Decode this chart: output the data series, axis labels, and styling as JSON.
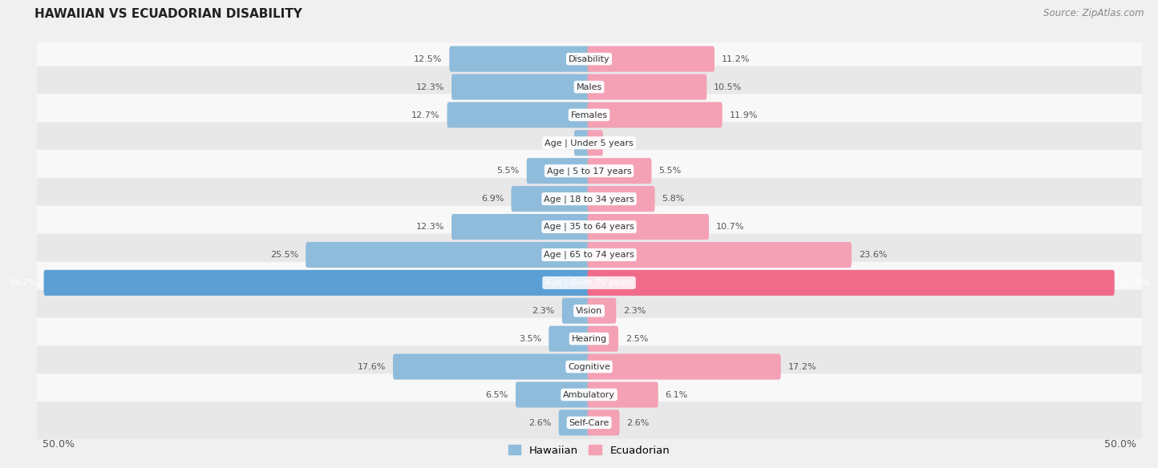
{
  "title": "HAWAIIAN VS ECUADORIAN DISABILITY",
  "source": "Source: ZipAtlas.com",
  "categories": [
    "Disability",
    "Males",
    "Females",
    "Age | Under 5 years",
    "Age | 5 to 17 years",
    "Age | 18 to 34 years",
    "Age | 35 to 64 years",
    "Age | 65 to 74 years",
    "Age | Over 75 years",
    "Vision",
    "Hearing",
    "Cognitive",
    "Ambulatory",
    "Self-Care"
  ],
  "hawaiian": [
    12.5,
    12.3,
    12.7,
    1.2,
    5.5,
    6.9,
    12.3,
    25.5,
    49.2,
    2.3,
    3.5,
    17.6,
    6.5,
    2.6
  ],
  "ecuadorian": [
    11.2,
    10.5,
    11.9,
    1.1,
    5.5,
    5.8,
    10.7,
    23.6,
    47.4,
    2.3,
    2.5,
    17.2,
    6.1,
    2.6
  ],
  "max_val": 50.0,
  "hawaiian_color": "#8fbcdb",
  "ecuadorian_color": "#f4a0b5",
  "highlighted_hawaiian_color": "#5b9fd4",
  "highlighted_ecuadorian_color": "#f06b8a",
  "highlight_row": 8,
  "background_color": "#f0f0f0",
  "row_bg_odd": "#e8e8e8",
  "row_bg_even": "#f8f8f8",
  "bar_height": 0.62,
  "title_fontsize": 11,
  "label_fontsize": 8.0,
  "value_fontsize": 8.0,
  "axis_label_left": "50.0%",
  "axis_label_right": "50.0%",
  "legend_hawaiian": "Hawaiian",
  "legend_ecuadorian": "Ecuadorian"
}
